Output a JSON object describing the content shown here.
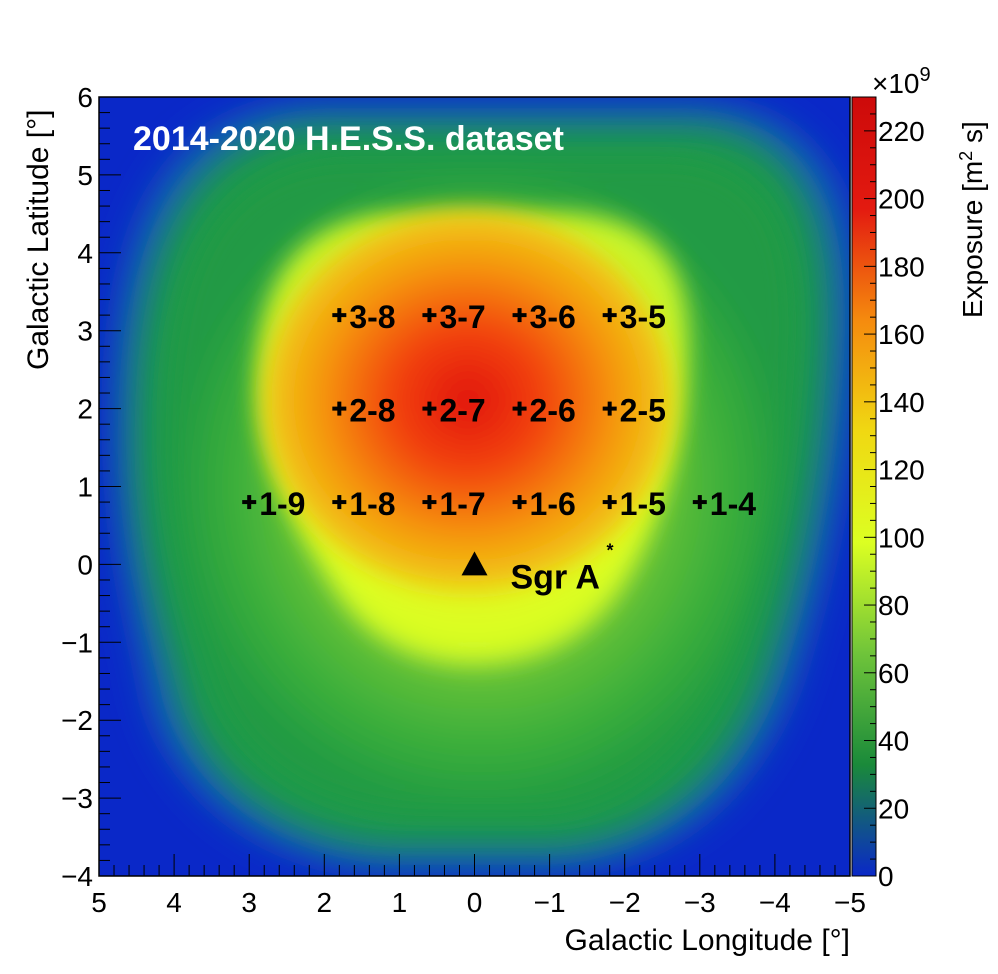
{
  "chart_data": {
    "type": "heatmap",
    "title": "2014-2020 H.E.S.S. dataset",
    "xlabel": "Galactic Longitude [°]",
    "ylabel": "Galactic Latitude [°]",
    "xlim": [
      5,
      -5
    ],
    "ylim": [
      -4,
      6
    ],
    "x_ticks": [
      5,
      4,
      3,
      2,
      1,
      0,
      -1,
      -2,
      -3,
      -4,
      -5
    ],
    "x_tick_labels": [
      "5",
      "4",
      "3",
      "2",
      "1",
      "0",
      "−1",
      "−2",
      "−3",
      "−4",
      "−5"
    ],
    "y_ticks": [
      -4,
      -3,
      -2,
      -1,
      0,
      1,
      2,
      3,
      4,
      5,
      6
    ],
    "y_tick_labels": [
      "−4",
      "−3",
      "−2",
      "−1",
      "0",
      "1",
      "2",
      "3",
      "4",
      "5",
      "6"
    ],
    "colorbar": {
      "label_main": "Exposure [m",
      "label_sup": "2",
      "label_end": " s]",
      "multiplier_base": "×10",
      "multiplier_exp": "9",
      "range": [
        0,
        230
      ],
      "ticks": [
        0,
        20,
        40,
        60,
        80,
        100,
        120,
        140,
        160,
        180,
        200,
        220
      ],
      "colors": [
        "#0a28c8",
        "#1a8a3a",
        "#6fc43a",
        "#dcff22",
        "#f0d812",
        "#f58a0e",
        "#e31a10",
        "#cd0a0a"
      ]
    },
    "peak": {
      "l": 0.1,
      "b": 2.4,
      "value": 228
    },
    "pointings": [
      {
        "label": "3-8",
        "l": 1.8,
        "b": 3.2
      },
      {
        "label": "3-7",
        "l": 0.6,
        "b": 3.2
      },
      {
        "label": "3-6",
        "l": -0.6,
        "b": 3.2
      },
      {
        "label": "3-5",
        "l": -1.8,
        "b": 3.2
      },
      {
        "label": "2-8",
        "l": 1.8,
        "b": 2.0
      },
      {
        "label": "2-7",
        "l": 0.6,
        "b": 2.0
      },
      {
        "label": "2-6",
        "l": -0.6,
        "b": 2.0
      },
      {
        "label": "2-5",
        "l": -1.8,
        "b": 2.0
      },
      {
        "label": "1-9",
        "l": 3.0,
        "b": 0.8
      },
      {
        "label": "1-8",
        "l": 1.8,
        "b": 0.8
      },
      {
        "label": "1-7",
        "l": 0.6,
        "b": 0.8
      },
      {
        "label": "1-6",
        "l": -0.6,
        "b": 0.8
      },
      {
        "label": "1-5",
        "l": -1.8,
        "b": 0.8
      },
      {
        "label": "1-4",
        "l": -3.0,
        "b": 0.8
      }
    ],
    "source": {
      "label": "Sgr A",
      "superscript": "*",
      "l": 0.0,
      "b": 0.0
    }
  }
}
